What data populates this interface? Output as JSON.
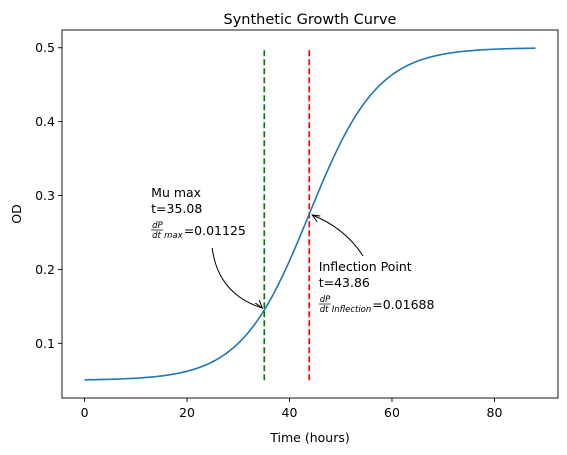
{
  "chart_data": {
    "type": "line",
    "title": "Synthetic Growth Curve",
    "xlabel": "Time (hours)",
    "ylabel": "OD",
    "xlim": [
      -4.4,
      92.4
    ],
    "ylim": [
      0.026,
      0.524
    ],
    "xticks": [
      0,
      20,
      40,
      60,
      80
    ],
    "yticks": [
      0.1,
      0.2,
      0.3,
      0.4,
      0.5
    ],
    "grid": false,
    "series": [
      {
        "color": "#1f77b4",
        "model": {
          "baseline": 0.05,
          "asymptote": 0.5,
          "midpoint": 43.86,
          "rate": 0.15
        },
        "x_range": [
          0,
          88
        ]
      }
    ],
    "vlines": [
      {
        "x": 35.08,
        "y_range": [
          0.05,
          0.5
        ],
        "color": "#008000",
        "style": "dashed"
      },
      {
        "x": 43.86,
        "y_range": [
          0.05,
          0.5
        ],
        "color": "#ff0000",
        "style": "dashed"
      }
    ],
    "annotations": [
      {
        "id": "mu-max",
        "target": [
          35.08,
          0.145
        ],
        "text_x": 13,
        "line1": "Mu max",
        "line2": "t=35.08",
        "frac_num": "dP",
        "frac_den": "dt",
        "subscript": "max",
        "value": "=0.01125"
      },
      {
        "id": "inflection",
        "target": [
          43.86,
          0.275
        ],
        "text_x": 45.7,
        "line1": "Inflection Point",
        "line2": "t=43.86",
        "frac_num": "dP",
        "frac_den": "dt",
        "subscript": "Inflection",
        "value": "=0.01688"
      }
    ]
  }
}
